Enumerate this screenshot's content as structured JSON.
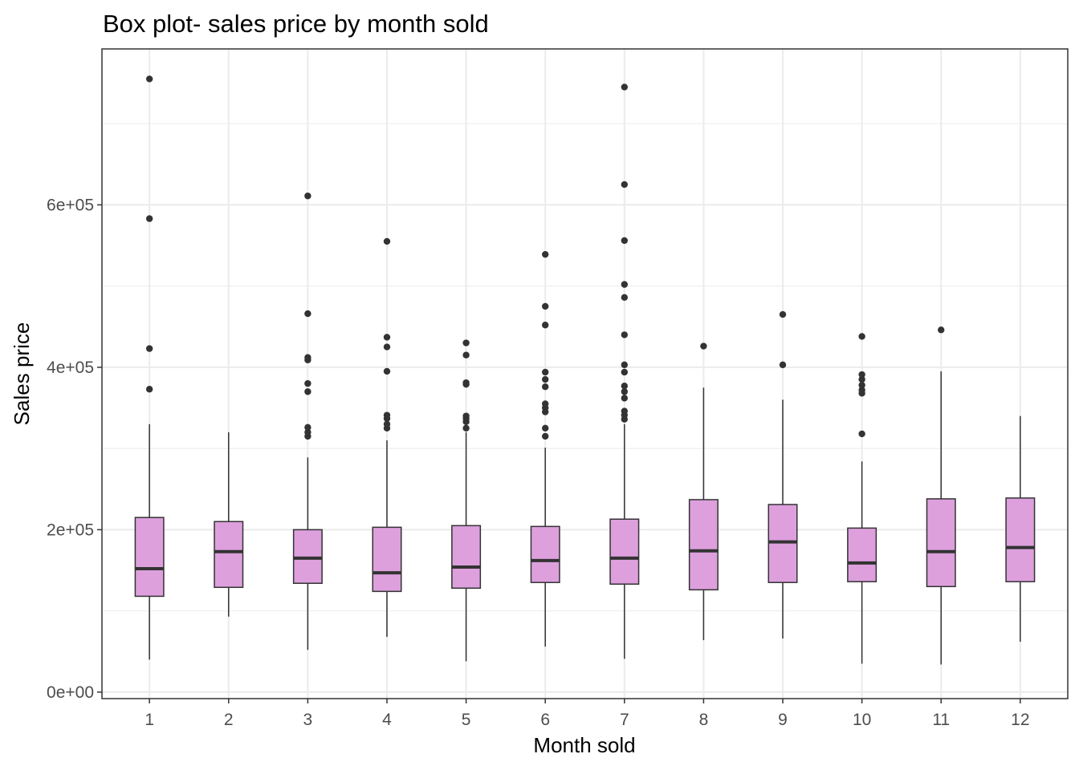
{
  "chart_data": {
    "type": "box",
    "title": "Box plot- sales price by month sold",
    "xlabel": "Month sold",
    "ylabel": "Sales price",
    "categories": [
      "1",
      "2",
      "3",
      "4",
      "5",
      "6",
      "7",
      "8",
      "9",
      "10",
      "11",
      "12"
    ],
    "y_ticks": [
      {
        "value": 0,
        "label": "0e+00"
      },
      {
        "value": 200000,
        "label": "2e+05"
      },
      {
        "value": 400000,
        "label": "4e+05"
      },
      {
        "value": 600000,
        "label": "6e+05"
      }
    ],
    "ylim": [
      -8000,
      792000
    ],
    "grid": true,
    "colors": {
      "box_fill": "#dda0dd",
      "box_line": "#333333",
      "outlier": "#333333",
      "grid": "#ebebeb"
    },
    "boxes": [
      {
        "month": "1",
        "whisker_low": 40000,
        "q1": 118000,
        "median": 152000,
        "q3": 215000,
        "whisker_high": 330000,
        "outliers": [
          373000,
          423000,
          583000,
          755000
        ]
      },
      {
        "month": "2",
        "whisker_low": 93000,
        "q1": 129000,
        "median": 173000,
        "q3": 210000,
        "whisker_high": 320000,
        "outliers": []
      },
      {
        "month": "3",
        "whisker_low": 52000,
        "q1": 134000,
        "median": 165000,
        "q3": 200000,
        "whisker_high": 289000,
        "outliers": [
          315000,
          320000,
          326000,
          370000,
          380000,
          409000,
          412000,
          466000,
          611000
        ]
      },
      {
        "month": "4",
        "whisker_low": 68000,
        "q1": 124000,
        "median": 147000,
        "q3": 203000,
        "whisker_high": 310000,
        "outliers": [
          325000,
          330000,
          337000,
          341000,
          395000,
          425000,
          437000,
          555000
        ]
      },
      {
        "month": "5",
        "whisker_low": 38000,
        "q1": 128000,
        "median": 154000,
        "q3": 205000,
        "whisker_high": 320000,
        "outliers": [
          325000,
          333000,
          337000,
          340000,
          379000,
          381000,
          415000,
          430000
        ]
      },
      {
        "month": "6",
        "whisker_low": 56000,
        "q1": 135000,
        "median": 162000,
        "q3": 204000,
        "whisker_high": 301000,
        "outliers": [
          315000,
          325000,
          345000,
          350000,
          355000,
          376000,
          385000,
          394000,
          452000,
          475000,
          539000
        ]
      },
      {
        "month": "7",
        "whisker_low": 41000,
        "q1": 133000,
        "median": 165000,
        "q3": 213000,
        "whisker_high": 330000,
        "outliers": [
          336000,
          341000,
          346000,
          362000,
          370000,
          377000,
          394000,
          403000,
          440000,
          486000,
          502000,
          556000,
          625000,
          745000
        ]
      },
      {
        "month": "8",
        "whisker_low": 64000,
        "q1": 126000,
        "median": 174000,
        "q3": 237000,
        "whisker_high": 375000,
        "outliers": [
          426000
        ]
      },
      {
        "month": "9",
        "whisker_low": 66000,
        "q1": 135000,
        "median": 185000,
        "q3": 231000,
        "whisker_high": 360000,
        "outliers": [
          403000,
          465000
        ]
      },
      {
        "month": "10",
        "whisker_low": 35000,
        "q1": 136000,
        "median": 159000,
        "q3": 202000,
        "whisker_high": 284000,
        "outliers": [
          318000,
          368000,
          372000,
          378000,
          385000,
          391000,
          438000
        ]
      },
      {
        "month": "11",
        "whisker_low": 34000,
        "q1": 130000,
        "median": 173000,
        "q3": 238000,
        "whisker_high": 395000,
        "outliers": [
          446000
        ]
      },
      {
        "month": "12",
        "whisker_low": 62000,
        "q1": 136000,
        "median": 178000,
        "q3": 239000,
        "whisker_high": 340000,
        "outliers": []
      }
    ]
  }
}
